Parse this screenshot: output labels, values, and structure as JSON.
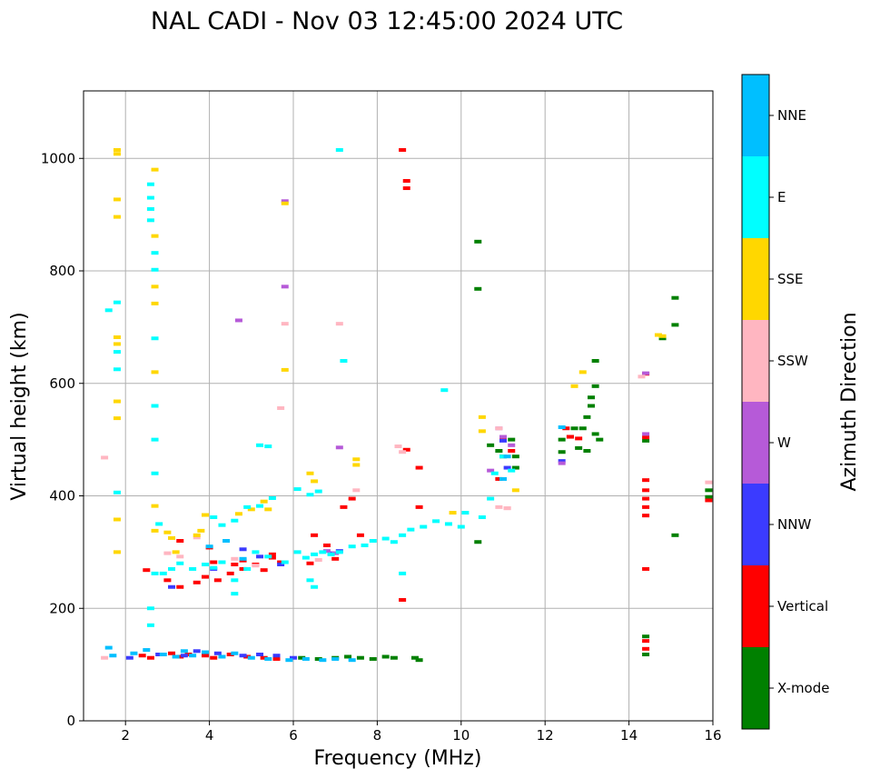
{
  "chart_data": {
    "type": "scatter",
    "title": "NAL CADI - Nov 03 12:45:00 2024 UTC",
    "xlabel": "Frequency (MHz)",
    "ylabel": "Virtual height (km)",
    "xlim": [
      1,
      16
    ],
    "ylim": [
      0,
      1120
    ],
    "xticks": [
      2,
      4,
      6,
      8,
      10,
      12,
      14,
      16
    ],
    "yticks": [
      0,
      200,
      400,
      600,
      800,
      1000
    ],
    "grid": true,
    "colorbar": {
      "label": "Azimuth Direction",
      "categories": [
        {
          "name": "X-mode",
          "color": "#008000"
        },
        {
          "name": "Vertical",
          "color": "#ff0000"
        },
        {
          "name": "NNW",
          "color": "#3b3bff"
        },
        {
          "name": "W",
          "color": "#b65ad8"
        },
        {
          "name": "SSW",
          "color": "#ffb6c1"
        },
        {
          "name": "SSE",
          "color": "#ffd700"
        },
        {
          "name": "E",
          "color": "#00ffff"
        },
        {
          "name": "NNE",
          "color": "#00bfff"
        }
      ]
    },
    "series": [
      {
        "name": "X-mode",
        "points": [
          [
            6.2,
            112
          ],
          [
            6.6,
            110
          ],
          [
            7.0,
            112
          ],
          [
            7.3,
            114
          ],
          [
            7.6,
            112
          ],
          [
            7.9,
            110
          ],
          [
            8.2,
            114
          ],
          [
            8.4,
            112
          ],
          [
            8.9,
            112
          ],
          [
            9.0,
            108
          ],
          [
            10.4,
            852
          ],
          [
            10.4,
            768
          ],
          [
            10.4,
            318
          ],
          [
            10.7,
            490
          ],
          [
            10.9,
            480
          ],
          [
            11.0,
            470
          ],
          [
            11.2,
            500
          ],
          [
            11.3,
            470
          ],
          [
            11.3,
            450
          ],
          [
            12.4,
            500
          ],
          [
            12.4,
            478
          ],
          [
            12.6,
            505
          ],
          [
            12.7,
            520
          ],
          [
            12.8,
            485
          ],
          [
            12.9,
            520
          ],
          [
            13.0,
            540
          ],
          [
            13.0,
            480
          ],
          [
            13.1,
            560
          ],
          [
            13.1,
            575
          ],
          [
            13.2,
            595
          ],
          [
            13.2,
            640
          ],
          [
            13.2,
            510
          ],
          [
            13.3,
            500
          ],
          [
            14.4,
            150
          ],
          [
            14.4,
            118
          ],
          [
            14.4,
            498
          ],
          [
            14.8,
            680
          ],
          [
            15.1,
            752
          ],
          [
            15.1,
            704
          ],
          [
            15.1,
            330
          ],
          [
            15.9,
            410
          ],
          [
            15.9,
            398
          ]
        ]
      },
      {
        "name": "Vertical",
        "points": [
          [
            2.4,
            116
          ],
          [
            2.6,
            112
          ],
          [
            3.1,
            120
          ],
          [
            3.3,
            114
          ],
          [
            3.5,
            118
          ],
          [
            3.9,
            116
          ],
          [
            4.1,
            112
          ],
          [
            4.5,
            118
          ],
          [
            4.9,
            114
          ],
          [
            5.3,
            112
          ],
          [
            5.6,
            110
          ],
          [
            2.5,
            268
          ],
          [
            3.0,
            250
          ],
          [
            3.3,
            238
          ],
          [
            3.7,
            246
          ],
          [
            3.9,
            256
          ],
          [
            4.2,
            250
          ],
          [
            4.5,
            262
          ],
          [
            4.8,
            270
          ],
          [
            5.1,
            278
          ],
          [
            5.3,
            268
          ],
          [
            5.5,
            290
          ],
          [
            5.7,
            282
          ],
          [
            3.3,
            320
          ],
          [
            4.0,
            308
          ],
          [
            4.1,
            282
          ],
          [
            4.6,
            278
          ],
          [
            4.8,
            285
          ],
          [
            5.5,
            296
          ],
          [
            6.4,
            280
          ],
          [
            6.5,
            330
          ],
          [
            6.8,
            312
          ],
          [
            7.0,
            288
          ],
          [
            7.2,
            380
          ],
          [
            7.4,
            395
          ],
          [
            7.6,
            330
          ],
          [
            8.6,
            1015
          ],
          [
            8.7,
            960
          ],
          [
            8.7,
            947
          ],
          [
            8.7,
            482
          ],
          [
            9.0,
            450
          ],
          [
            9.0,
            380
          ],
          [
            8.6,
            215
          ],
          [
            10.9,
            430
          ],
          [
            11.0,
            500
          ],
          [
            11.2,
            480
          ],
          [
            12.5,
            520
          ],
          [
            12.6,
            505
          ],
          [
            12.8,
            502
          ],
          [
            14.4,
            617
          ],
          [
            14.4,
            504
          ],
          [
            14.4,
            428
          ],
          [
            14.4,
            410
          ],
          [
            14.4,
            395
          ],
          [
            14.4,
            380
          ],
          [
            14.4,
            365
          ],
          [
            14.4,
            270
          ],
          [
            14.4,
            142
          ],
          [
            14.4,
            128
          ],
          [
            15.9,
            392
          ]
        ]
      },
      {
        "name": "NNW",
        "points": [
          [
            2.1,
            112
          ],
          [
            2.8,
            118
          ],
          [
            3.4,
            116
          ],
          [
            3.7,
            124
          ],
          [
            4.2,
            120
          ],
          [
            4.8,
            116
          ],
          [
            5.2,
            118
          ],
          [
            5.6,
            116
          ],
          [
            6.0,
            112
          ],
          [
            3.1,
            238
          ],
          [
            4.1,
            270
          ],
          [
            4.8,
            305
          ],
          [
            5.2,
            292
          ],
          [
            5.7,
            278
          ],
          [
            6.9,
            298
          ],
          [
            7.1,
            302
          ],
          [
            11.0,
            498
          ],
          [
            11.1,
            450
          ],
          [
            12.4,
            462
          ]
        ]
      },
      {
        "name": "W",
        "points": [
          [
            4.7,
            712
          ],
          [
            5.8,
            924
          ],
          [
            5.8,
            772
          ],
          [
            7.1,
            486
          ],
          [
            6.8,
            302
          ],
          [
            7.0,
            298
          ],
          [
            10.7,
            445
          ],
          [
            10.9,
            520
          ],
          [
            11.0,
            505
          ],
          [
            11.2,
            490
          ],
          [
            12.4,
            458
          ],
          [
            14.4,
            618
          ],
          [
            14.4,
            510
          ]
        ]
      },
      {
        "name": "SSW",
        "points": [
          [
            1.5,
            468
          ],
          [
            1.5,
            112
          ],
          [
            3.0,
            298
          ],
          [
            3.3,
            292
          ],
          [
            3.7,
            326
          ],
          [
            4.6,
            288
          ],
          [
            5.1,
            276
          ],
          [
            5.7,
            556
          ],
          [
            5.8,
            706
          ],
          [
            6.6,
            286
          ],
          [
            7.1,
            706
          ],
          [
            7.5,
            410
          ],
          [
            8.5,
            488
          ],
          [
            8.6,
            478
          ],
          [
            10.9,
            520
          ],
          [
            10.9,
            380
          ],
          [
            11.1,
            378
          ],
          [
            11.1,
            378
          ],
          [
            14.3,
            612
          ],
          [
            15.9,
            424
          ]
        ]
      },
      {
        "name": "SSE",
        "points": [
          [
            1.8,
            1015
          ],
          [
            1.8,
            1008
          ],
          [
            1.8,
            927
          ],
          [
            1.8,
            896
          ],
          [
            1.8,
            682
          ],
          [
            1.8,
            670
          ],
          [
            1.8,
            568
          ],
          [
            1.8,
            538
          ],
          [
            1.8,
            358
          ],
          [
            1.8,
            300
          ],
          [
            2.7,
            980
          ],
          [
            2.7,
            862
          ],
          [
            2.7,
            772
          ],
          [
            2.7,
            742
          ],
          [
            2.7,
            620
          ],
          [
            2.7,
            382
          ],
          [
            2.7,
            338
          ],
          [
            3.0,
            335
          ],
          [
            3.1,
            325
          ],
          [
            3.2,
            300
          ],
          [
            3.7,
            330
          ],
          [
            3.8,
            338
          ],
          [
            3.9,
            366
          ],
          [
            4.7,
            368
          ],
          [
            5.0,
            376
          ],
          [
            5.3,
            390
          ],
          [
            5.4,
            376
          ],
          [
            5.8,
            920
          ],
          [
            5.8,
            624
          ],
          [
            6.4,
            440
          ],
          [
            6.5,
            426
          ],
          [
            7.5,
            465
          ],
          [
            7.5,
            455
          ],
          [
            9.8,
            370
          ],
          [
            10.5,
            515
          ],
          [
            10.5,
            540
          ],
          [
            11.3,
            410
          ],
          [
            12.7,
            595
          ],
          [
            12.9,
            620
          ],
          [
            14.7,
            686
          ],
          [
            14.8,
            684
          ]
        ]
      },
      {
        "name": "E",
        "points": [
          [
            1.6,
            730
          ],
          [
            1.8,
            744
          ],
          [
            1.8,
            656
          ],
          [
            1.8,
            625
          ],
          [
            1.8,
            406
          ],
          [
            2.6,
            954
          ],
          [
            2.6,
            930
          ],
          [
            2.6,
            910
          ],
          [
            2.6,
            890
          ],
          [
            2.7,
            832
          ],
          [
            2.7,
            802
          ],
          [
            2.7,
            680
          ],
          [
            2.7,
            560
          ],
          [
            2.7,
            500
          ],
          [
            2.7,
            440
          ],
          [
            2.6,
            200
          ],
          [
            2.6,
            170
          ],
          [
            2.7,
            262
          ],
          [
            2.8,
            350
          ],
          [
            2.9,
            262
          ],
          [
            3.3,
            280
          ],
          [
            3.6,
            270
          ],
          [
            3.9,
            278
          ],
          [
            4.1,
            272
          ],
          [
            4.3,
            282
          ],
          [
            4.6,
            250
          ],
          [
            4.9,
            270
          ],
          [
            5.1,
            300
          ],
          [
            5.4,
            292
          ],
          [
            5.8,
            282
          ],
          [
            6.1,
            300
          ],
          [
            6.3,
            290
          ],
          [
            6.5,
            296
          ],
          [
            6.7,
            300
          ],
          [
            6.9,
            296
          ],
          [
            7.1,
            300
          ],
          [
            7.4,
            310
          ],
          [
            7.7,
            312
          ],
          [
            7.9,
            320
          ],
          [
            8.2,
            324
          ],
          [
            8.4,
            318
          ],
          [
            8.6,
            330
          ],
          [
            8.8,
            340
          ],
          [
            9.1,
            345
          ],
          [
            9.4,
            355
          ],
          [
            9.7,
            350
          ],
          [
            10.0,
            345
          ],
          [
            10.1,
            370
          ],
          [
            10.5,
            362
          ],
          [
            10.7,
            395
          ],
          [
            10.8,
            440
          ],
          [
            11.0,
            470
          ],
          [
            11.2,
            445
          ],
          [
            4.1,
            362
          ],
          [
            4.3,
            348
          ],
          [
            4.6,
            356
          ],
          [
            4.9,
            380
          ],
          [
            5.2,
            382
          ],
          [
            5.5,
            396
          ],
          [
            6.1,
            412
          ],
          [
            6.4,
            402
          ],
          [
            6.6,
            408
          ],
          [
            7.1,
            1015
          ],
          [
            7.2,
            640
          ],
          [
            9.6,
            588
          ],
          [
            5.2,
            490
          ],
          [
            5.4,
            488
          ],
          [
            8.6,
            262
          ],
          [
            6.4,
            250
          ],
          [
            6.5,
            238
          ],
          [
            4.6,
            226
          ],
          [
            3.1,
            270
          ]
        ]
      },
      {
        "name": "NNE",
        "points": [
          [
            1.6,
            130
          ],
          [
            1.7,
            116
          ],
          [
            2.2,
            120
          ],
          [
            2.5,
            126
          ],
          [
            2.9,
            118
          ],
          [
            3.2,
            114
          ],
          [
            3.4,
            124
          ],
          [
            3.6,
            116
          ],
          [
            3.9,
            122
          ],
          [
            4.3,
            114
          ],
          [
            4.6,
            120
          ],
          [
            5.0,
            112
          ],
          [
            5.4,
            110
          ],
          [
            5.9,
            108
          ],
          [
            6.3,
            110
          ],
          [
            6.7,
            108
          ],
          [
            7.0,
            110
          ],
          [
            7.4,
            108
          ],
          [
            4.0,
            310
          ],
          [
            4.4,
            320
          ],
          [
            4.8,
            288
          ],
          [
            11.1,
            470
          ],
          [
            11.0,
            430
          ],
          [
            12.4,
            522
          ]
        ]
      }
    ]
  }
}
